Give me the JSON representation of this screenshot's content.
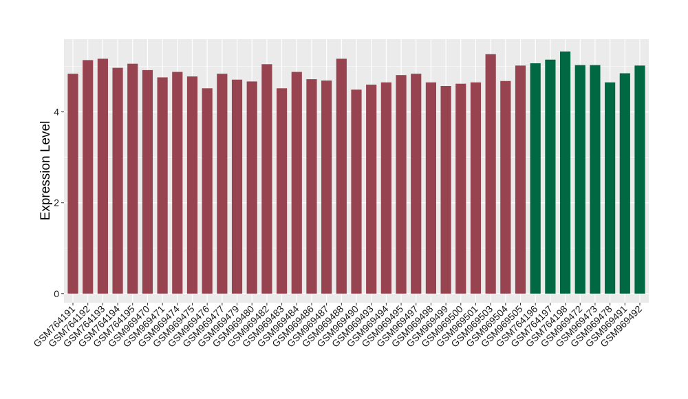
{
  "chart_data": {
    "type": "bar",
    "title": "",
    "xlabel": "",
    "ylabel": "Expression Level",
    "ylim": [
      -0.2,
      5.6
    ],
    "yticks": [
      0,
      2,
      4
    ],
    "grid": true,
    "legend": "none",
    "colors": {
      "group1": "#984350",
      "group2": "#006843",
      "panel": "#ebebeb",
      "grid": "#ffffff"
    },
    "categories": [
      "GSM764191",
      "GSM764192",
      "GSM764193",
      "GSM764194",
      "GSM764195",
      "GSM969470",
      "GSM969471",
      "GSM969474",
      "GSM969475",
      "GSM969476",
      "GSM969477",
      "GSM969479",
      "GSM969480",
      "GSM969482",
      "GSM969483",
      "GSM969484",
      "GSM969486",
      "GSM969487",
      "GSM969488",
      "GSM969490",
      "GSM969493",
      "GSM969494",
      "GSM969495",
      "GSM969497",
      "GSM969498",
      "GSM969499",
      "GSM969500",
      "GSM969501",
      "GSM969503",
      "GSM969504",
      "GSM969505",
      "GSM764196",
      "GSM764197",
      "GSM764198",
      "GSM969472",
      "GSM969473",
      "GSM969478",
      "GSM969491",
      "GSM969492"
    ],
    "values": [
      4.84,
      5.14,
      5.17,
      4.97,
      5.06,
      4.92,
      4.76,
      4.88,
      4.78,
      4.52,
      4.84,
      4.71,
      4.67,
      5.05,
      4.52,
      4.88,
      4.72,
      4.69,
      5.17,
      4.49,
      4.6,
      4.65,
      4.81,
      4.84,
      4.65,
      4.57,
      4.62,
      4.65,
      5.27,
      4.68,
      5.02,
      5.07,
      5.15,
      5.33,
      5.03,
      5.03,
      4.65,
      4.85,
      5.02
    ],
    "groups": [
      1,
      1,
      1,
      1,
      1,
      1,
      1,
      1,
      1,
      1,
      1,
      1,
      1,
      1,
      1,
      1,
      1,
      1,
      1,
      1,
      1,
      1,
      1,
      1,
      1,
      1,
      1,
      1,
      1,
      1,
      1,
      2,
      2,
      2,
      2,
      2,
      2,
      2,
      2
    ]
  }
}
